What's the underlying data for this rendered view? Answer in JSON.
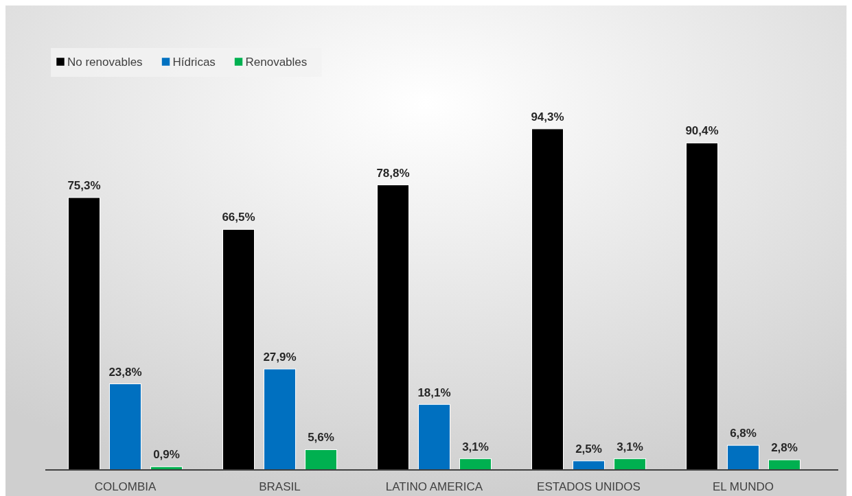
{
  "chart_data": {
    "type": "bar",
    "categories": [
      "COLOMBIA",
      "BRASIL",
      "LATINO AMERICA",
      "ESTADOS UNIDOS",
      "EL MUNDO"
    ],
    "series": [
      {
        "name": "No renovables",
        "color": "#000000",
        "values": [
          75.3,
          66.5,
          78.8,
          94.3,
          90.4
        ],
        "value_labels": [
          "75,3%",
          "66,5%",
          "78,8%",
          "94,3%",
          "90,4%"
        ]
      },
      {
        "name": "Hídricas",
        "color": "#0070c0",
        "values": [
          23.8,
          27.9,
          18.1,
          2.5,
          6.8
        ],
        "value_labels": [
          "23,8%",
          "27,9%",
          "18,1%",
          "2,5%",
          "6,8%"
        ]
      },
      {
        "name": "Renovables",
        "color": "#00b050",
        "values": [
          0.9,
          5.6,
          3.1,
          3.1,
          2.8
        ],
        "value_labels": [
          "0,9%",
          "5,6%",
          "3,1%",
          "3,1%",
          "2,8%"
        ]
      }
    ],
    "legend": "top left"
  }
}
